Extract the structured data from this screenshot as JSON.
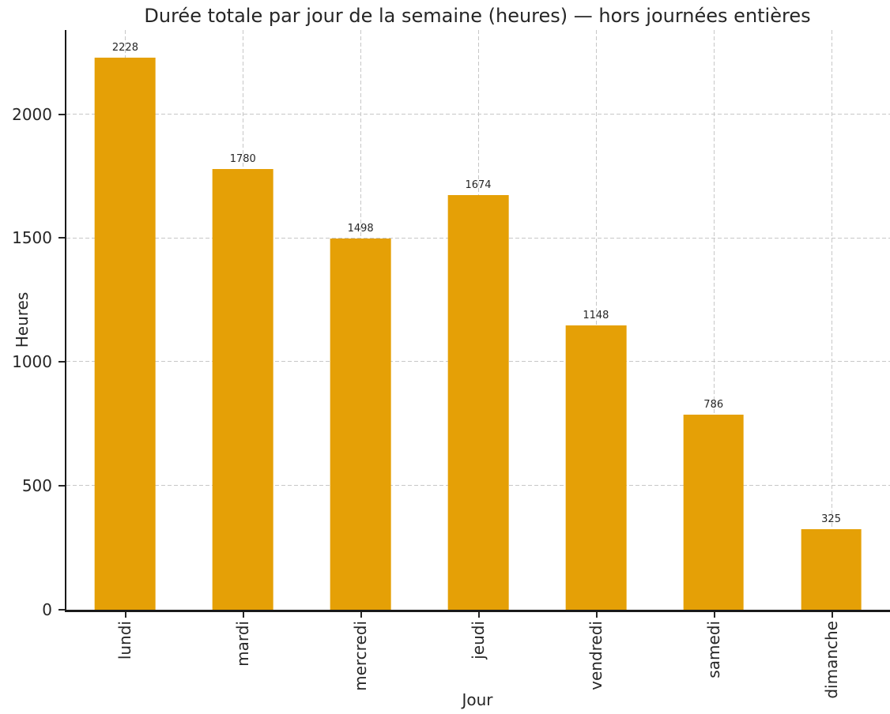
{
  "chart_data": {
    "type": "bar",
    "title": "Durée totale par jour de la semaine (heures) — hors journées entières",
    "xlabel": "Jour",
    "ylabel": "Heures",
    "categories": [
      "lundi",
      "mardi",
      "mercredi",
      "jeudi",
      "vendredi",
      "samedi",
      "dimanche"
    ],
    "values": [
      2228,
      1780,
      1498,
      1674,
      1148,
      786,
      325
    ],
    "yticks": [
      0,
      500,
      1000,
      1500,
      2000
    ],
    "ylim": [
      0,
      2340
    ],
    "bar_color": "#e5a006",
    "grid": "dashed, horizontal and vertical, on",
    "legend_position": "none",
    "bar_value_labels": [
      "2228",
      "1780",
      "1498",
      "1674",
      "1148",
      "786",
      "325"
    ],
    "colors": {
      "background": "#ffffff",
      "grid": "#c7c7c7",
      "spine": "#1a1a1a",
      "text": "#262626"
    }
  }
}
